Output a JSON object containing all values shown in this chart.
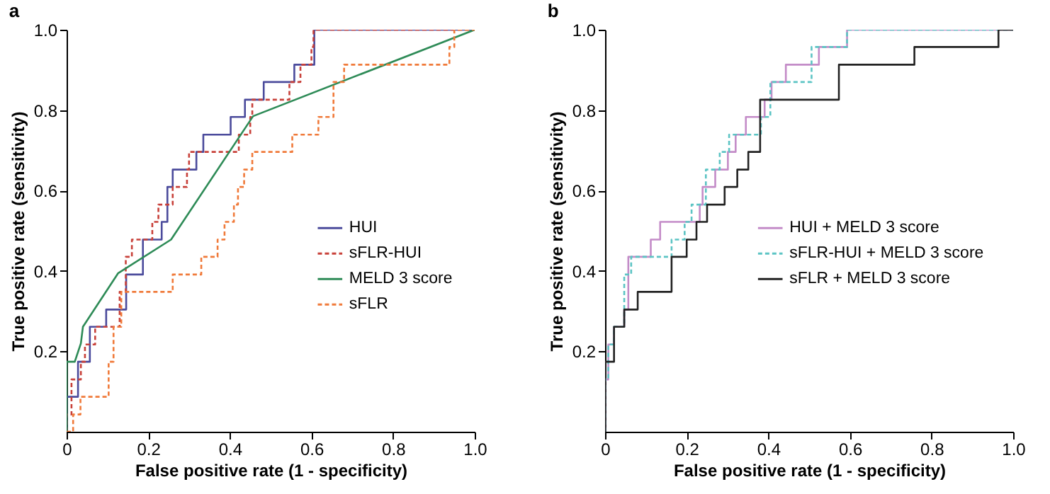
{
  "chart_data": [
    {
      "type": "line",
      "title": "a",
      "xlabel": "False positive rate (1 - specificity)",
      "ylabel": "True positive rate (sensitivity)",
      "xlim": [
        0,
        1
      ],
      "ylim": [
        0,
        1
      ],
      "xticks": [
        0,
        0.2,
        0.4,
        0.6,
        0.8,
        {
          "value": 1,
          "label": "1.0"
        }
      ],
      "yticks": [
        0.2,
        0.4,
        0.6,
        0.8,
        {
          "value": 1,
          "label": "1.0"
        }
      ],
      "grid": false,
      "legend": "right",
      "marker": "none",
      "series": [
        {
          "name": "HUI",
          "color": "#4b4b9c",
          "line_style": "solid",
          "x": [
            0,
            0,
            0.028,
            0.028,
            0.057,
            0.057,
            0.097,
            0.097,
            0.146,
            0.146,
            0.187,
            0.187,
            0.233,
            0.233,
            0.247,
            0.247,
            0.26,
            0.26,
            0.318,
            0.318,
            0.335,
            0.335,
            0.402,
            0.402,
            0.437,
            0.437,
            0.483,
            0.483,
            0.558,
            0.558,
            0.607,
            0.607,
            1
          ],
          "values": [
            0,
            0.087,
            0.087,
            0.174,
            0.174,
            0.261,
            0.261,
            0.304,
            0.304,
            0.391,
            0.391,
            0.478,
            0.478,
            0.522,
            0.522,
            0.609,
            0.609,
            0.652,
            0.652,
            0.696,
            0.696,
            0.739,
            0.739,
            0.783,
            0.783,
            0.826,
            0.826,
            0.87,
            0.87,
            0.913,
            0.913,
            1,
            1
          ]
        },
        {
          "name": "sFLR-HUI",
          "color": "#c8413a",
          "line_style": "dashed",
          "x": [
            0,
            0,
            0.012,
            0.012,
            0.035,
            0.035,
            0.045,
            0.045,
            0.07,
            0.07,
            0.13,
            0.13,
            0.145,
            0.145,
            0.16,
            0.16,
            0.21,
            0.21,
            0.225,
            0.225,
            0.26,
            0.26,
            0.295,
            0.295,
            0.3,
            0.3,
            0.422,
            0.422,
            0.45,
            0.45,
            0.455,
            0.455,
            0.546,
            0.546,
            0.573,
            0.573,
            0.6,
            0.6,
            0.605,
            0.605,
            1
          ],
          "values": [
            0,
            0.043,
            0.043,
            0.13,
            0.13,
            0.174,
            0.174,
            0.217,
            0.217,
            0.261,
            0.261,
            0.348,
            0.348,
            0.435,
            0.435,
            0.478,
            0.478,
            0.522,
            0.522,
            0.565,
            0.565,
            0.609,
            0.609,
            0.652,
            0.652,
            0.696,
            0.696,
            0.739,
            0.739,
            0.783,
            0.783,
            0.826,
            0.826,
            0.87,
            0.87,
            0.913,
            0.913,
            0.957,
            0.957,
            1,
            1
          ]
        },
        {
          "name": "MELD 3 score",
          "color": "#2e8b57",
          "line_style": "solid",
          "x": [
            0,
            0,
            0.02,
            0.035,
            0.04,
            0.126,
            0.256,
            0.457,
            1
          ],
          "values": [
            0,
            0.174,
            0.174,
            0.22,
            0.261,
            0.394,
            0.478,
            0.785,
            1
          ]
        },
        {
          "name": "sFLR",
          "color": "#f07a3a",
          "line_style": "dashed",
          "x": [
            0,
            0.016,
            0.016,
            0.034,
            0.034,
            0.103,
            0.103,
            0.115,
            0.115,
            0.134,
            0.134,
            0.26,
            0.26,
            0.33,
            0.33,
            0.37,
            0.37,
            0.387,
            0.387,
            0.41,
            0.41,
            0.42,
            0.42,
            0.435,
            0.435,
            0.455,
            0.455,
            0.553,
            0.553,
            0.617,
            0.617,
            0.654,
            0.654,
            0.68,
            0.68,
            0.938,
            0.938,
            0.95,
            0.95,
            1
          ],
          "values": [
            0,
            0,
            0.043,
            0.043,
            0.087,
            0.087,
            0.174,
            0.174,
            0.261,
            0.261,
            0.348,
            0.348,
            0.391,
            0.391,
            0.435,
            0.435,
            0.478,
            0.478,
            0.522,
            0.522,
            0.565,
            0.565,
            0.609,
            0.609,
            0.652,
            0.652,
            0.696,
            0.696,
            0.739,
            0.739,
            0.783,
            0.783,
            0.87,
            0.87,
            0.913,
            0.913,
            0.957,
            0.957,
            1,
            1
          ]
        }
      ]
    },
    {
      "type": "line",
      "title": "b",
      "xlabel": "False positive rate (1 - specificity)",
      "ylabel": "True positive rate (sensitivity)",
      "xlim": [
        0,
        1
      ],
      "ylim": [
        0,
        1
      ],
      "xticks": [
        0,
        0.2,
        0.4,
        0.6,
        0.8,
        {
          "value": 1,
          "label": "1.0"
        }
      ],
      "yticks": [
        0.2,
        0.4,
        0.6,
        0.8,
        {
          "value": 1,
          "label": "1.0"
        }
      ],
      "grid": false,
      "legend": "right",
      "marker": "none",
      "series": [
        {
          "name": "HUI + MELD 3 score",
          "color": "#c48cc8",
          "line_style": "solid",
          "x": [
            0,
            0,
            0.008,
            0.008,
            0.022,
            0.022,
            0.047,
            0.047,
            0.057,
            0.057,
            0.112,
            0.112,
            0.135,
            0.135,
            0.232,
            0.232,
            0.239,
            0.239,
            0.27,
            0.27,
            0.301,
            0.301,
            0.32,
            0.32,
            0.345,
            0.345,
            0.391,
            0.391,
            0.408,
            0.408,
            0.443,
            0.443,
            0.524,
            0.524,
            0.593,
            0.593,
            1
          ],
          "values": [
            0,
            0.13,
            0.13,
            0.217,
            0.217,
            0.261,
            0.261,
            0.304,
            0.304,
            0.435,
            0.435,
            0.478,
            0.478,
            0.522,
            0.522,
            0.565,
            0.565,
            0.609,
            0.609,
            0.652,
            0.652,
            0.696,
            0.696,
            0.739,
            0.739,
            0.783,
            0.783,
            0.826,
            0.826,
            0.87,
            0.87,
            0.913,
            0.913,
            0.957,
            0.957,
            1,
            1
          ]
        },
        {
          "name": "sFLR-HUI + MELD 3 score",
          "color": "#5cc4c4",
          "line_style": "dashed",
          "x": [
            0,
            0,
            0.008,
            0.008,
            0.022,
            0.022,
            0.047,
            0.047,
            0.064,
            0.064,
            0.163,
            0.163,
            0.195,
            0.195,
            0.212,
            0.212,
            0.247,
            0.247,
            0.281,
            0.281,
            0.304,
            0.304,
            0.382,
            0.382,
            0.405,
            0.405,
            0.506,
            0.506,
            0.593,
            0.593,
            1
          ],
          "values": [
            0,
            0.13,
            0.13,
            0.217,
            0.217,
            0.261,
            0.261,
            0.391,
            0.391,
            0.435,
            0.435,
            0.478,
            0.478,
            0.522,
            0.522,
            0.565,
            0.565,
            0.652,
            0.652,
            0.696,
            0.696,
            0.739,
            0.739,
            0.783,
            0.783,
            0.87,
            0.87,
            0.957,
            0.957,
            1,
            1
          ]
        },
        {
          "name": "sFLR + MELD 3 score",
          "color": "#222222",
          "line_style": "solid",
          "x": [
            0,
            0,
            0.022,
            0.022,
            0.047,
            0.047,
            0.08,
            0.08,
            0.163,
            0.163,
            0.2,
            0.2,
            0.224,
            0.224,
            0.25,
            0.25,
            0.293,
            0.293,
            0.324,
            0.324,
            0.351,
            0.351,
            0.38,
            0.38,
            0.573,
            0.573,
            0.758,
            0.758,
            0.964,
            0.964,
            1
          ],
          "values": [
            0,
            0.174,
            0.174,
            0.261,
            0.261,
            0.304,
            0.304,
            0.348,
            0.348,
            0.435,
            0.435,
            0.478,
            0.478,
            0.522,
            0.522,
            0.565,
            0.565,
            0.609,
            0.609,
            0.652,
            0.652,
            0.696,
            0.696,
            0.826,
            0.826,
            0.913,
            0.913,
            0.957,
            0.957,
            1,
            1
          ]
        }
      ]
    }
  ]
}
